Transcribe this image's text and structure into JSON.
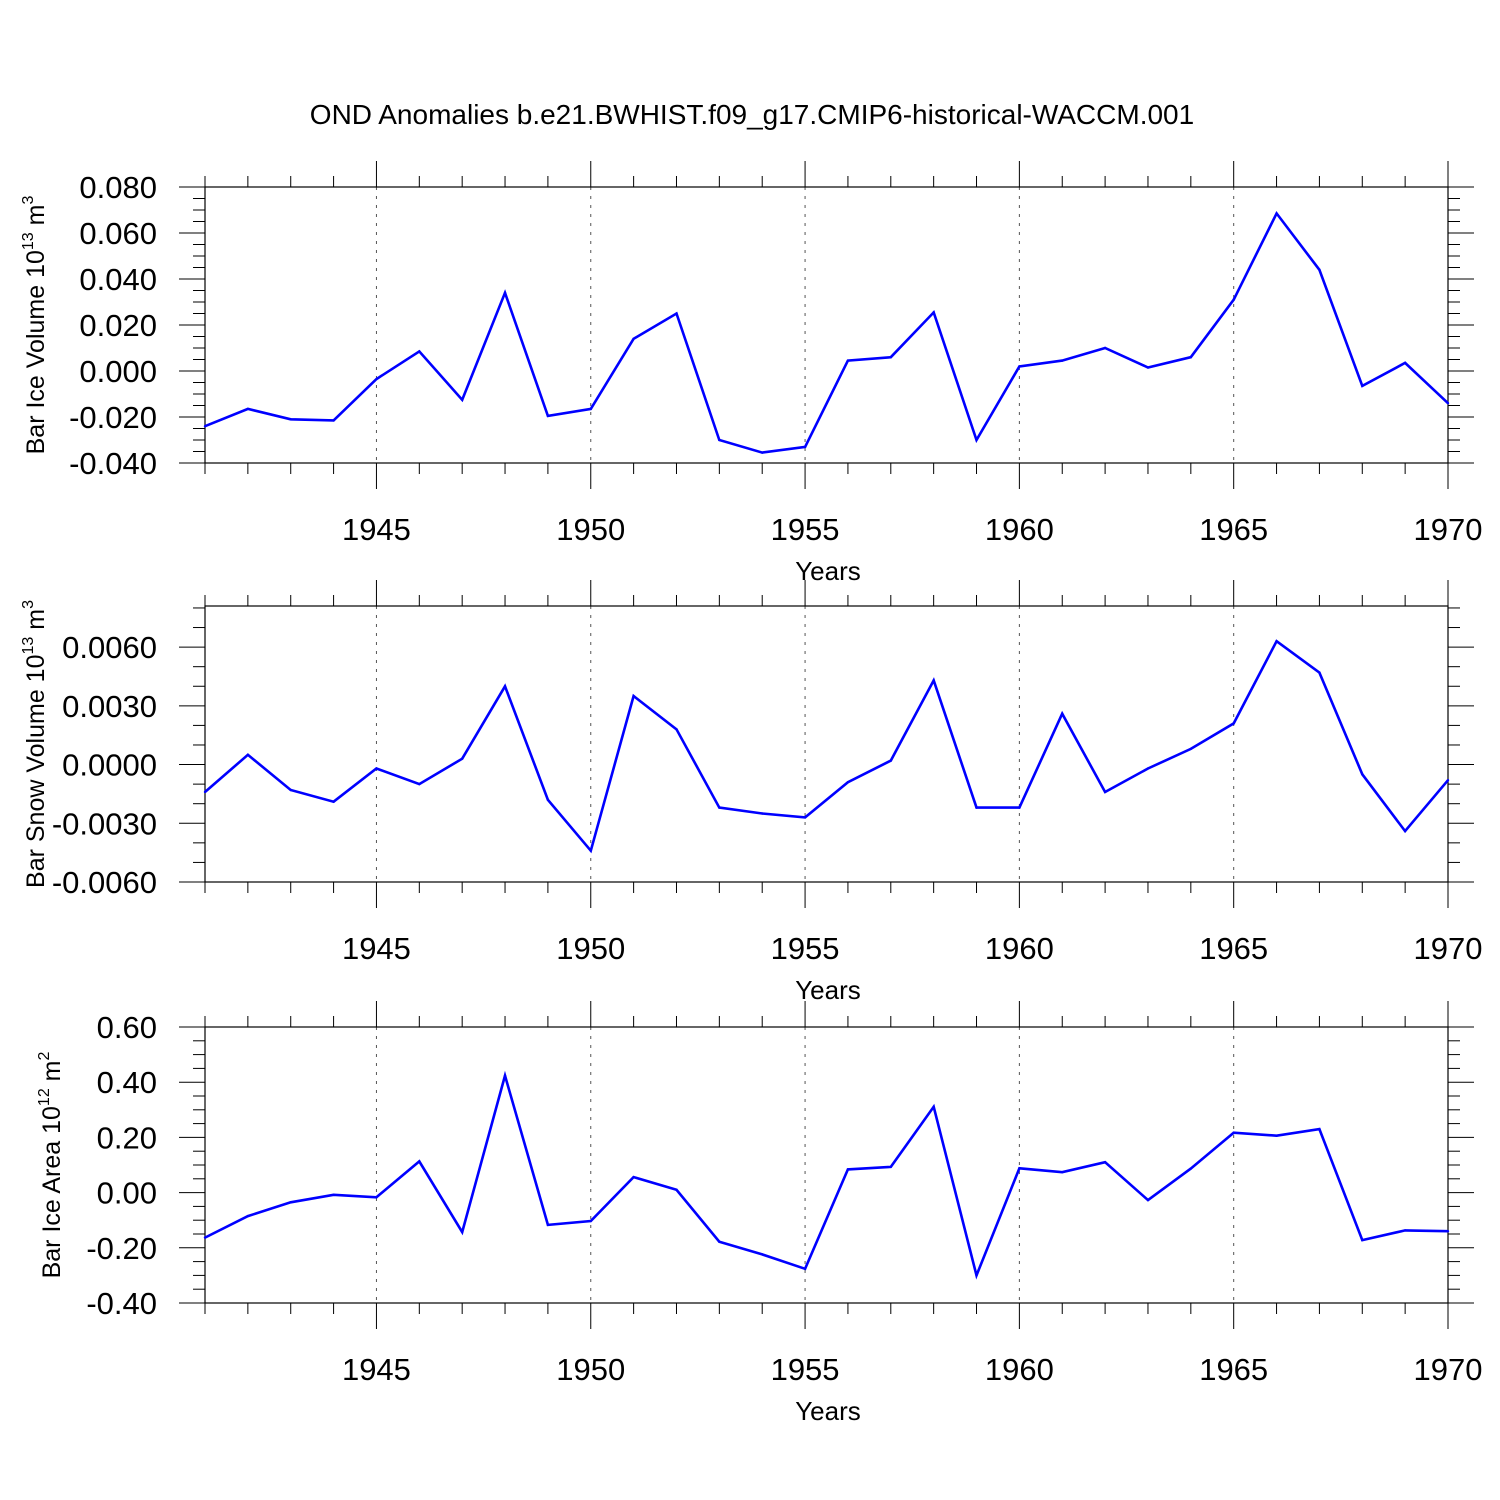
{
  "title": "OND Anomalies b.e21.BWHIST.f09_g17.CMIP6-historical-WACCM.001",
  "line_color": "#0000ff",
  "chart_data": [
    {
      "type": "line",
      "title": "OND Anomalies b.e21.BWHIST.f09_g17.CMIP6-historical-WACCM.001",
      "ylabel": {
        "main": "Bar Ice Volume 10",
        "sup": "13",
        "unit": " m",
        "unit_sup": "3"
      },
      "xlabel": "Years",
      "xlim": [
        1941,
        1970
      ],
      "ylim": [
        -0.04,
        0.08
      ],
      "yticks": [
        -0.04,
        -0.02,
        0.0,
        0.02,
        0.04,
        0.06,
        0.08
      ],
      "ytick_labels": [
        "-0.040",
        "-0.020",
        "0.000",
        "0.020",
        "0.040",
        "0.060",
        "0.080"
      ],
      "y_minor": 0.005,
      "xticks": [
        1945,
        1950,
        1955,
        1960,
        1965,
        1970
      ],
      "xtick_labels": [
        "1945",
        "1950",
        "1955",
        "1960",
        "1965",
        "1970"
      ],
      "grid": "vertical dashed at major x ticks",
      "x": [
        1941,
        1942,
        1943,
        1944,
        1945,
        1946,
        1947,
        1948,
        1949,
        1950,
        1951,
        1952,
        1953,
        1954,
        1955,
        1956,
        1957,
        1958,
        1959,
        1960,
        1961,
        1962,
        1963,
        1964,
        1965,
        1966,
        1967,
        1968,
        1969,
        1970
      ],
      "values": [
        -0.024,
        -0.0165,
        -0.021,
        -0.0215,
        -0.0035,
        0.0085,
        -0.0125,
        0.034,
        -0.0195,
        -0.0165,
        0.014,
        0.025,
        -0.03,
        -0.0355,
        -0.033,
        0.0045,
        0.006,
        0.0255,
        -0.03,
        0.002,
        0.0045,
        0.01,
        0.0015,
        0.006,
        0.031,
        0.0685,
        0.044,
        -0.0065,
        0.0035,
        -0.014
      ]
    },
    {
      "type": "line",
      "ylabel": {
        "main": "Bar Snow Volume 10",
        "sup": "13",
        "unit": " m",
        "unit_sup": "3"
      },
      "xlabel": "Years",
      "xlim": [
        1941,
        1970
      ],
      "ylim": [
        -0.006,
        0.0081
      ],
      "yticks": [
        -0.006,
        -0.003,
        0.0,
        0.003,
        0.006
      ],
      "ytick_labels": [
        "-0.0060",
        "-0.0030",
        "0.0000",
        "0.0030",
        "0.0060"
      ],
      "y_minor": 0.001,
      "xticks": [
        1945,
        1950,
        1955,
        1960,
        1965,
        1970
      ],
      "xtick_labels": [
        "1945",
        "1950",
        "1955",
        "1960",
        "1965",
        "1970"
      ],
      "grid": "vertical dashed at major x ticks",
      "x": [
        1941,
        1942,
        1943,
        1944,
        1945,
        1946,
        1947,
        1948,
        1949,
        1950,
        1951,
        1952,
        1953,
        1954,
        1955,
        1956,
        1957,
        1958,
        1959,
        1960,
        1961,
        1962,
        1963,
        1964,
        1965,
        1966,
        1967,
        1968,
        1969,
        1970
      ],
      "values": [
        -0.0014,
        0.0005,
        -0.0013,
        -0.0019,
        -0.0002,
        -0.001,
        0.0003,
        0.004,
        -0.0018,
        -0.0044,
        0.0035,
        0.0018,
        -0.0022,
        -0.0025,
        -0.0027,
        -0.0009,
        0.0002,
        0.0043,
        -0.0022,
        -0.0022,
        0.0026,
        -0.0014,
        -0.0002,
        0.0008,
        0.0021,
        0.0063,
        0.0047,
        -0.0005,
        -0.0034,
        -0.0008
      ]
    },
    {
      "type": "line",
      "ylabel": {
        "main": "Bar Ice Area 10",
        "sup": "12",
        "unit": " m",
        "unit_sup": "2"
      },
      "xlabel": "Years",
      "xlim": [
        1941,
        1970
      ],
      "ylim": [
        -0.4,
        0.6
      ],
      "yticks": [
        -0.4,
        -0.2,
        0.0,
        0.2,
        0.4,
        0.6
      ],
      "ytick_labels": [
        "-0.40",
        "-0.20",
        "0.00",
        "0.20",
        "0.40",
        "0.60"
      ],
      "y_minor": 0.05,
      "xticks": [
        1945,
        1950,
        1955,
        1960,
        1965,
        1970
      ],
      "xtick_labels": [
        "1945",
        "1950",
        "1955",
        "1960",
        "1965",
        "1970"
      ],
      "grid": "vertical dashed at major x ticks",
      "x": [
        1941,
        1942,
        1943,
        1944,
        1945,
        1946,
        1947,
        1948,
        1949,
        1950,
        1951,
        1952,
        1953,
        1954,
        1955,
        1956,
        1957,
        1958,
        1959,
        1960,
        1961,
        1962,
        1963,
        1964,
        1965,
        1966,
        1967,
        1968,
        1969,
        1970
      ],
      "values": [
        -0.163,
        -0.085,
        -0.035,
        -0.008,
        -0.017,
        0.113,
        -0.143,
        0.424,
        -0.117,
        -0.103,
        0.056,
        0.01,
        -0.178,
        -0.224,
        -0.276,
        0.084,
        0.093,
        0.311,
        -0.3,
        0.088,
        0.074,
        0.11,
        -0.027,
        0.087,
        0.217,
        0.206,
        0.23,
        -0.172,
        -0.137,
        -0.14
      ]
    }
  ]
}
